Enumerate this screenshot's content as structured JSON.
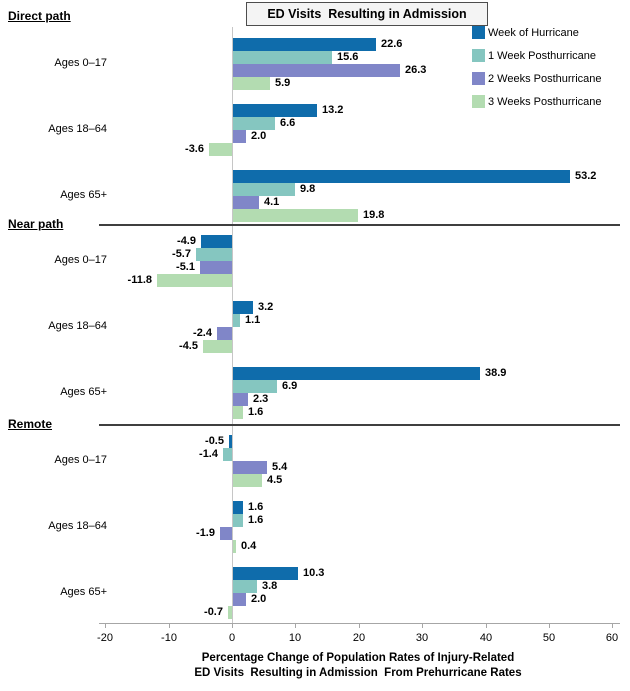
{
  "chart_data": {
    "type": "bar",
    "orientation": "horizontal",
    "title": "ED Visits  Resulting in Admission",
    "xlabel_lines": [
      "Percentage Change of Population Rates of Injury-Related",
      "ED Visits  Resulting in Admission  From Prehurricane Rates"
    ],
    "xlim": [
      -20,
      60
    ],
    "xticks": [
      -20,
      -10,
      0,
      10,
      20,
      30,
      40,
      50,
      60
    ],
    "grid": false,
    "legend_position": "top-right",
    "series": [
      {
        "name": "Week of Hurricane",
        "color": "#0f6cab"
      },
      {
        "name": "1 Week Posthurricane",
        "color": "#85c6c0"
      },
      {
        "name": "2 Weeks Posthurricane",
        "color": "#8086c8"
      },
      {
        "name": "3 Weeks Posthurricane",
        "color": "#b3dcb1"
      }
    ],
    "sections": [
      {
        "label": "Direct path",
        "groups": [
          {
            "label": "Ages 0–17",
            "values": [
              22.6,
              15.6,
              26.3,
              5.9
            ]
          },
          {
            "label": "Ages 18–64",
            "values": [
              13.2,
              6.6,
              2.0,
              -3.6
            ]
          },
          {
            "label": "Ages 65+",
            "values": [
              53.2,
              9.8,
              4.1,
              19.8
            ]
          }
        ]
      },
      {
        "label": "Near path",
        "groups": [
          {
            "label": "Ages 0–17",
            "values": [
              -4.9,
              -5.7,
              -5.1,
              -11.8
            ]
          },
          {
            "label": "Ages 18–64",
            "values": [
              3.2,
              1.1,
              -2.4,
              -4.5
            ]
          },
          {
            "label": "Ages 65+",
            "values": [
              38.9,
              6.9,
              2.3,
              1.6
            ]
          }
        ]
      },
      {
        "label": "Remote",
        "groups": [
          {
            "label": "Ages 0–17",
            "values": [
              -0.5,
              -1.4,
              5.4,
              4.5
            ]
          },
          {
            "label": "Ages 18–64",
            "values": [
              1.6,
              1.6,
              -1.9,
              0.4
            ]
          },
          {
            "label": "Ages 65+",
            "values": [
              10.3,
              3.8,
              2.0,
              -0.7
            ]
          }
        ]
      }
    ],
    "colors": {
      "separator_line": "#3f3f3f",
      "zero_line": "#c6c6c6",
      "axis_line": "#a6a6a6",
      "title_box_bg": "#f4f4f4",
      "title_box_border": "#4d4d4d"
    }
  }
}
